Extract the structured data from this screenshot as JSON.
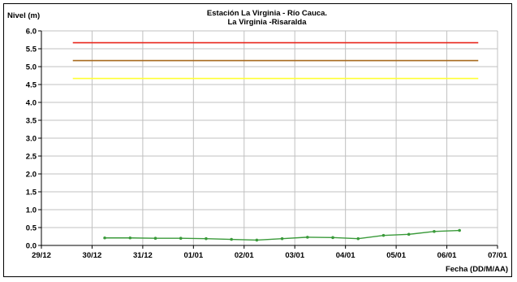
{
  "chart_data": {
    "type": "line",
    "title": "Estación La Virginia  - Río Cauca.",
    "subtitle": "La Virginia -Risaralda",
    "ylabel": "Nivel (m)",
    "xlabel": "Fecha (DD/M/AA)",
    "ylim": [
      0,
      6
    ],
    "y_ticks": [
      "0.0",
      "0.5",
      "1.0",
      "1.5",
      "2.0",
      "2.5",
      "3.0",
      "3.5",
      "4.0",
      "4.5",
      "5.0",
      "5.5",
      "6.0"
    ],
    "x_ticks": [
      "29/12",
      "30/12",
      "31/12",
      "01/01",
      "02/01",
      "03/01",
      "04/01",
      "05/01",
      "06/01",
      "07/01"
    ],
    "xlim": [
      0,
      9
    ],
    "grid": true,
    "thresholds": [
      {
        "value": 5.67,
        "color": "#e8261c",
        "x_start": 0.62,
        "x_end": 8.62
      },
      {
        "value": 5.17,
        "color": "#a86a1c",
        "x_start": 0.62,
        "x_end": 8.62
      },
      {
        "value": 4.67,
        "color": "#ffff33",
        "x_start": 0.62,
        "x_end": 8.62
      }
    ],
    "series": [
      {
        "color": "#3a9a3a",
        "x": [
          1.25,
          1.75,
          2.25,
          2.75,
          3.25,
          3.75,
          4.25,
          4.75,
          5.25,
          5.75,
          6.25,
          6.75,
          7.25,
          7.75,
          8.25
        ],
        "values": [
          0.21,
          0.21,
          0.2,
          0.2,
          0.19,
          0.17,
          0.15,
          0.19,
          0.23,
          0.22,
          0.19,
          0.28,
          0.31,
          0.39,
          0.42
        ]
      }
    ]
  }
}
